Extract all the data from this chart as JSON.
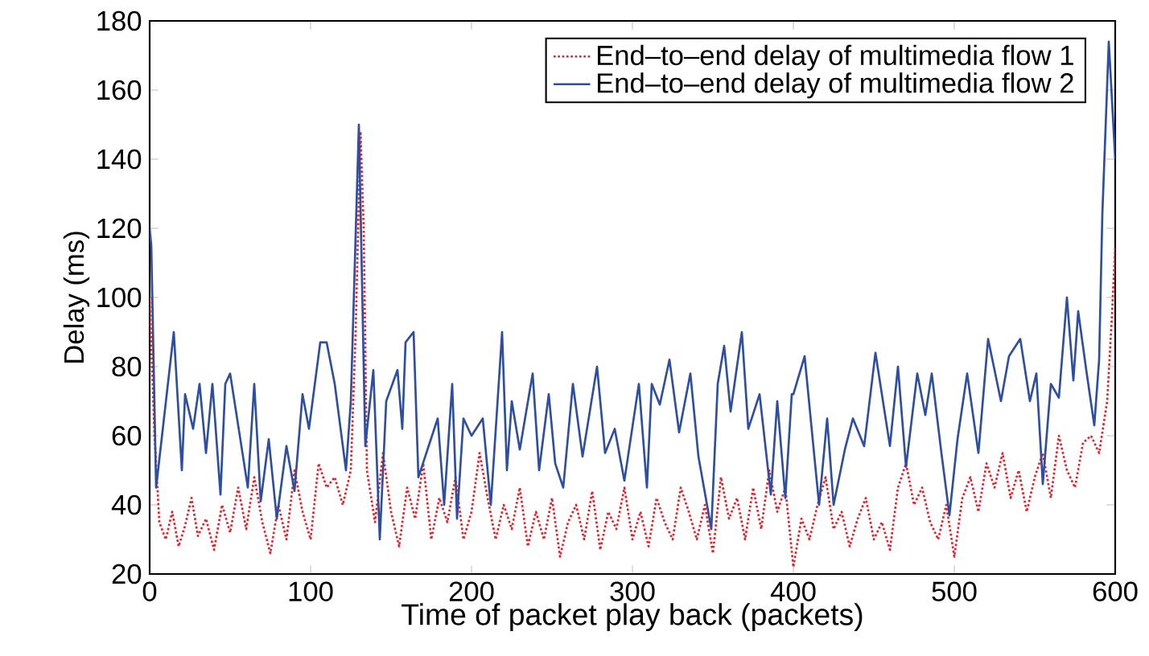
{
  "chart_data": {
    "type": "line",
    "xlabel": "Time of packet play back (packets)",
    "ylabel": "Delay (ms)",
    "xlim": [
      0,
      600
    ],
    "ylim": [
      20,
      180
    ],
    "xticks": [
      0,
      100,
      200,
      300,
      400,
      500,
      600
    ],
    "yticks": [
      20,
      40,
      60,
      80,
      100,
      120,
      140,
      160,
      180
    ],
    "legend": "top right",
    "marker": "none",
    "series": [
      {
        "name": "End–to–end delay of multimedia flow 1",
        "color": "#e8202a",
        "line_style": "dotted",
        "x": [
          0,
          3,
          6,
          10,
          14,
          18,
          22,
          26,
          30,
          35,
          40,
          45,
          50,
          55,
          60,
          65,
          70,
          75,
          80,
          85,
          90,
          95,
          100,
          105,
          110,
          115,
          120,
          125,
          128,
          131,
          133,
          135,
          140,
          145,
          150,
          155,
          160,
          165,
          170,
          175,
          180,
          185,
          190,
          195,
          200,
          205,
          210,
          215,
          220,
          225,
          230,
          235,
          240,
          245,
          250,
          255,
          260,
          265,
          270,
          275,
          280,
          285,
          290,
          295,
          300,
          305,
          310,
          315,
          320,
          325,
          330,
          335,
          340,
          345,
          350,
          355,
          360,
          365,
          370,
          375,
          380,
          385,
          390,
          395,
          400,
          405,
          410,
          415,
          420,
          425,
          430,
          435,
          440,
          445,
          450,
          455,
          460,
          465,
          470,
          475,
          480,
          485,
          490,
          495,
          500,
          505,
          510,
          515,
          520,
          525,
          530,
          535,
          540,
          545,
          550,
          555,
          560,
          565,
          570,
          575,
          580,
          585,
          590,
          595,
          598,
          600
        ],
        "values": [
          100,
          60,
          35,
          30,
          38,
          28,
          34,
          42,
          31,
          36,
          27,
          40,
          32,
          45,
          33,
          48,
          35,
          26,
          40,
          30,
          50,
          38,
          30,
          52,
          45,
          48,
          40,
          50,
          90,
          148,
          120,
          50,
          35,
          55,
          38,
          28,
          45,
          36,
          52,
          30,
          42,
          35,
          48,
          30,
          38,
          55,
          42,
          30,
          40,
          33,
          45,
          28,
          38,
          30,
          42,
          25,
          35,
          40,
          30,
          44,
          27,
          38,
          33,
          45,
          30,
          38,
          28,
          42,
          35,
          30,
          45,
          38,
          30,
          40,
          26,
          48,
          36,
          42,
          30,
          45,
          33,
          50,
          38,
          45,
          22,
          36,
          30,
          40,
          48,
          33,
          38,
          28,
          36,
          42,
          30,
          35,
          27,
          45,
          52,
          40,
          45,
          35,
          30,
          40,
          25,
          42,
          48,
          38,
          52,
          45,
          55,
          42,
          50,
          38,
          48,
          55,
          42,
          60,
          50,
          45,
          58,
          60,
          55,
          70,
          95,
          115
        ]
      },
      {
        "name": "End–to–end delay of multimedia flow 2",
        "color": "#2e4ea0",
        "line_style": "solid",
        "x": [
          0,
          1,
          4,
          15,
          20,
          22,
          27,
          31,
          35,
          39,
          44,
          47,
          50,
          57,
          61,
          65,
          69,
          74,
          79,
          85,
          90,
          95,
          99,
          106,
          110,
          115,
          122,
          125,
          130,
          134,
          139,
          143,
          147,
          154,
          157,
          159,
          164,
          167,
          179,
          183,
          188,
          191,
          195,
          200,
          207,
          212,
          219,
          222,
          225,
          230,
          238,
          242,
          248,
          252,
          257,
          263,
          269,
          278,
          283,
          289,
          295,
          304,
          309,
          312,
          317,
          323,
          329,
          336,
          341,
          349,
          353,
          357,
          361,
          368,
          372,
          379,
          386,
          390,
          395,
          399,
          400,
          407,
          412,
          416,
          421,
          425,
          432,
          437,
          444,
          451,
          460,
          465,
          470,
          477,
          482,
          486,
          492,
          497,
          502,
          508,
          515,
          521,
          529,
          534,
          541,
          547,
          551,
          555,
          560,
          565,
          570,
          574,
          577,
          582,
          587,
          590,
          592,
          596,
          600
        ],
        "values": [
          120,
          115,
          45,
          90,
          50,
          72,
          62,
          75,
          55,
          75,
          43,
          75,
          78,
          57,
          45,
          75,
          41,
          59,
          36,
          57,
          44,
          72,
          62,
          87,
          87,
          75,
          50,
          70,
          150,
          57,
          79,
          30,
          70,
          79,
          62,
          87,
          90,
          48,
          65,
          40,
          75,
          36,
          65,
          60,
          65,
          40,
          90,
          50,
          70,
          56,
          78,
          50,
          72,
          52,
          45,
          75,
          54,
          80,
          55,
          62,
          47,
          75,
          45,
          75,
          69,
          82,
          61,
          78,
          54,
          33,
          75,
          86,
          67,
          90,
          62,
          72,
          43,
          70,
          42,
          72,
          72,
          83,
          59,
          40,
          65,
          40,
          56,
          65,
          57,
          84,
          57,
          80,
          51,
          78,
          66,
          78,
          55,
          37,
          59,
          78,
          55,
          88,
          70,
          83,
          88,
          70,
          78,
          46,
          75,
          71,
          100,
          76,
          96,
          79,
          63,
          82,
          124,
          174,
          140
        ]
      }
    ]
  }
}
